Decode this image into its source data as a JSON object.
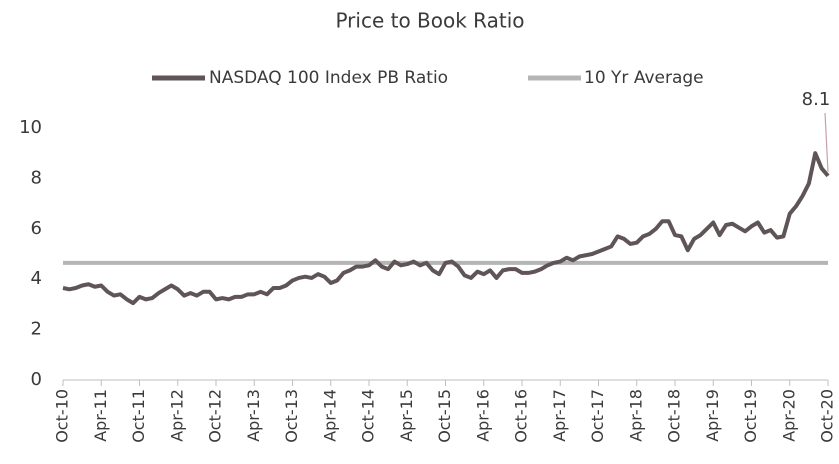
{
  "chart_data": {
    "type": "line",
    "title": "Price to Book Ratio",
    "categories": [
      "Oct-10",
      null,
      null,
      null,
      null,
      null,
      "Apr-11",
      null,
      null,
      null,
      null,
      null,
      "Oct-11",
      null,
      null,
      null,
      null,
      null,
      "Apr-12",
      null,
      null,
      null,
      null,
      null,
      "Oct-12",
      null,
      null,
      null,
      null,
      null,
      "Apr-13",
      null,
      null,
      null,
      null,
      null,
      "Oct-13",
      null,
      null,
      null,
      null,
      null,
      "Apr-14",
      null,
      null,
      null,
      null,
      null,
      "Oct-14",
      null,
      null,
      null,
      null,
      null,
      "Apr-15",
      null,
      null,
      null,
      null,
      null,
      "Oct-15",
      null,
      null,
      null,
      null,
      null,
      "Apr-16",
      null,
      null,
      null,
      null,
      null,
      "Oct-16",
      null,
      null,
      null,
      null,
      null,
      "Apr-17",
      null,
      null,
      null,
      null,
      null,
      "Oct-17",
      null,
      null,
      null,
      null,
      null,
      "Apr-18",
      null,
      null,
      null,
      null,
      null,
      "Oct-18",
      null,
      null,
      null,
      null,
      null,
      "Apr-19",
      null,
      null,
      null,
      null,
      null,
      "Oct-19",
      null,
      null,
      null,
      null,
      null,
      "Apr-20",
      null,
      null,
      null,
      null,
      null,
      "Oct-20"
    ],
    "series": [
      {
        "name": "NASDAQ 100 Index PB Ratio",
        "color": "#5f5556",
        "values": [
          3.65,
          3.6,
          3.65,
          3.75,
          3.8,
          3.7,
          3.75,
          3.5,
          3.35,
          3.4,
          3.2,
          3.05,
          3.3,
          3.2,
          3.25,
          3.45,
          3.6,
          3.75,
          3.6,
          3.35,
          3.45,
          3.35,
          3.5,
          3.5,
          3.2,
          3.25,
          3.2,
          3.3,
          3.3,
          3.4,
          3.4,
          3.5,
          3.4,
          3.65,
          3.65,
          3.75,
          3.95,
          4.05,
          4.1,
          4.05,
          4.2,
          4.1,
          3.85,
          3.95,
          4.25,
          4.35,
          4.5,
          4.5,
          4.55,
          4.75,
          4.5,
          4.4,
          4.7,
          4.55,
          4.6,
          4.7,
          4.55,
          4.65,
          4.35,
          4.2,
          4.65,
          4.7,
          4.5,
          4.15,
          4.05,
          4.3,
          4.2,
          4.35,
          4.05,
          4.35,
          4.4,
          4.4,
          4.25,
          4.25,
          4.3,
          4.4,
          4.55,
          4.65,
          4.7,
          4.85,
          4.75,
          4.9,
          4.95,
          5.0,
          5.1,
          5.2,
          5.3,
          5.7,
          5.6,
          5.4,
          5.45,
          5.7,
          5.8,
          6.0,
          6.3,
          6.3,
          5.75,
          5.7,
          5.15,
          5.6,
          5.75,
          6.0,
          6.25,
          5.75,
          6.15,
          6.2,
          6.05,
          5.9,
          6.1,
          6.25,
          5.85,
          5.95,
          5.65,
          5.7,
          6.6,
          6.9,
          7.3,
          7.8,
          9.0,
          8.4,
          8.1
        ]
      },
      {
        "name": "10 Yr Average",
        "color": "#b5b5b5",
        "values": [
          4.65,
          4.65,
          4.65,
          4.65,
          4.65,
          4.65,
          4.65,
          4.65,
          4.65,
          4.65,
          4.65,
          4.65,
          4.65,
          4.65,
          4.65,
          4.65,
          4.65,
          4.65,
          4.65,
          4.65,
          4.65,
          4.65,
          4.65,
          4.65,
          4.65,
          4.65,
          4.65,
          4.65,
          4.65,
          4.65,
          4.65,
          4.65,
          4.65,
          4.65,
          4.65,
          4.65,
          4.65,
          4.65,
          4.65,
          4.65,
          4.65,
          4.65,
          4.65,
          4.65,
          4.65,
          4.65,
          4.65,
          4.65,
          4.65,
          4.65,
          4.65,
          4.65,
          4.65,
          4.65,
          4.65,
          4.65,
          4.65,
          4.65,
          4.65,
          4.65,
          4.65,
          4.65,
          4.65,
          4.65,
          4.65,
          4.65,
          4.65,
          4.65,
          4.65,
          4.65,
          4.65,
          4.65,
          4.65,
          4.65,
          4.65,
          4.65,
          4.65,
          4.65,
          4.65,
          4.65,
          4.65,
          4.65,
          4.65,
          4.65,
          4.65,
          4.65,
          4.65,
          4.65,
          4.65,
          4.65,
          4.65,
          4.65,
          4.65,
          4.65,
          4.65,
          4.65,
          4.65,
          4.65,
          4.65,
          4.65,
          4.65,
          4.65,
          4.65,
          4.65,
          4.65,
          4.65,
          4.65,
          4.65,
          4.65,
          4.65,
          4.65,
          4.65,
          4.65,
          4.65,
          4.65,
          4.65,
          4.65,
          4.65,
          4.65,
          4.65,
          4.65
        ]
      }
    ],
    "annotation": "8.1",
    "ylim": [
      0,
      10
    ],
    "yticks": [
      0,
      2,
      4,
      6,
      8,
      10
    ],
    "grid": false,
    "legend": "top"
  }
}
